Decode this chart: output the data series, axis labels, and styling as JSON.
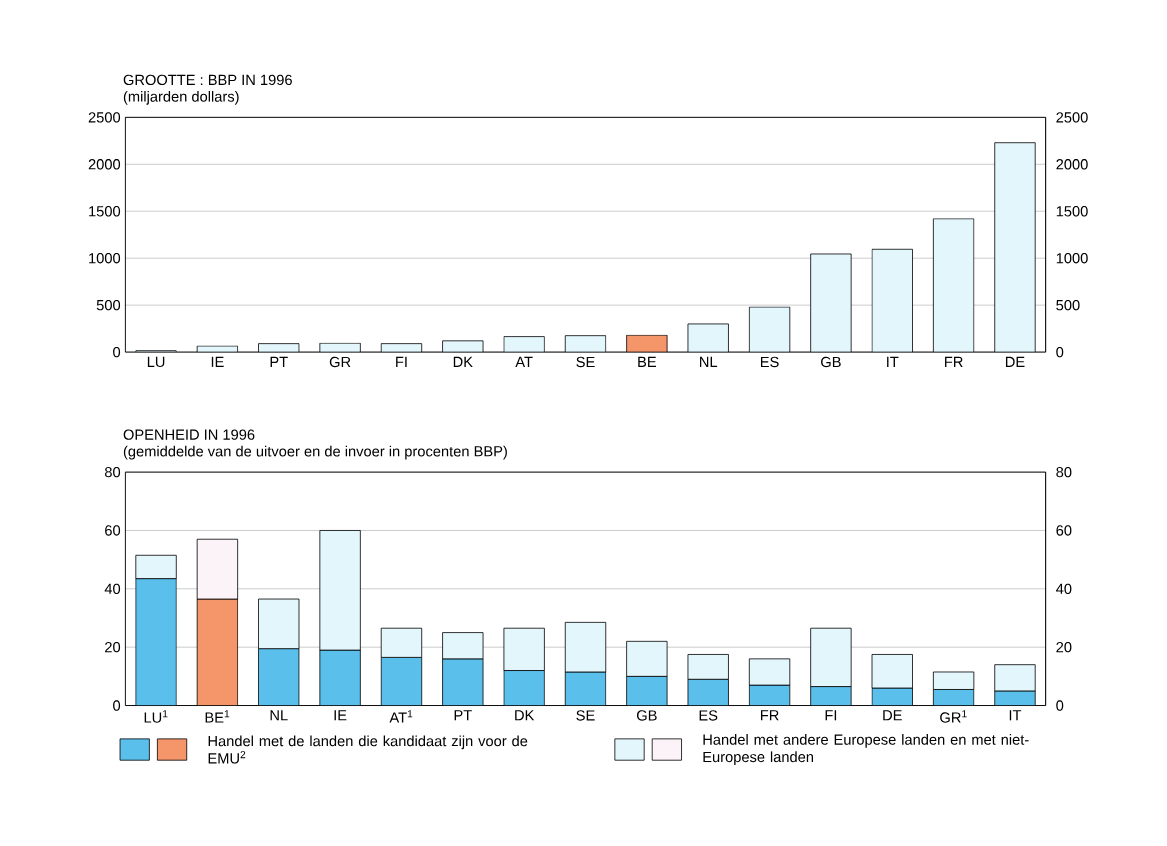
{
  "chart_data": [
    {
      "type": "bar",
      "title": "GROOTTE : BBP IN 1996",
      "subtitle": "(miljarden dollars)",
      "categories": [
        "LU",
        "IE",
        "PT",
        "GR",
        "FI",
        "DK",
        "AT",
        "SE",
        "BE",
        "NL",
        "ES",
        "GB",
        "IT",
        "FR",
        "DE"
      ],
      "values": [
        15,
        65,
        90,
        95,
        90,
        120,
        165,
        175,
        180,
        300,
        480,
        1045,
        1095,
        1420,
        2230
      ],
      "colors": [
        "#e3f6fc",
        "#e3f6fc",
        "#e3f6fc",
        "#e3f6fc",
        "#e3f6fc",
        "#e3f6fc",
        "#e3f6fc",
        "#e3f6fc",
        "#f4956a",
        "#e3f6fc",
        "#e3f6fc",
        "#e3f6fc",
        "#e3f6fc",
        "#e3f6fc",
        "#e3f6fc"
      ],
      "ylim": [
        0,
        2500
      ],
      "yticks": [
        0,
        500,
        1000,
        1500,
        2000,
        2500
      ],
      "y2lim": [
        0,
        2500
      ],
      "y2ticks": [
        0,
        500,
        1000,
        1500,
        2000,
        2500
      ],
      "grid": "y"
    },
    {
      "type": "bar",
      "stacked": true,
      "title": "OPENHEID IN 1996",
      "subtitle": "(gemiddelde van de uitvoer en de invoer in procenten BBP)",
      "categories": [
        "LU$^{1}$",
        "BE$^{1}$",
        "NL",
        "IE",
        "AT$^{1}$",
        "PT",
        "DK",
        "SE",
        "GB",
        "ES",
        "FR",
        "FI",
        "DE",
        "GR$^{1}$",
        "IT"
      ],
      "series": [
        {
          "name": "Handel met de landen die kandidaat zijn voor de EMU$^{2}$",
          "colors": [
            "#5bbfeb",
            "#f4956a",
            "#5bbfeb",
            "#5bbfeb",
            "#5bbfeb",
            "#5bbfeb",
            "#5bbfeb",
            "#5bbfeb",
            "#5bbfeb",
            "#5bbfeb",
            "#5bbfeb",
            "#5bbfeb",
            "#5bbfeb",
            "#5bbfeb",
            "#5bbfeb"
          ],
          "values": [
            43.5,
            36.5,
            19.5,
            19,
            16.5,
            16,
            12,
            11.5,
            10,
            9,
            7,
            6.5,
            6,
            5.5,
            5
          ]
        },
        {
          "name": "Handel met andere Europese landen en met niet-Europese landen",
          "colors": [
            "#e3f6fc",
            "#fbf3f7",
            "#e3f6fc",
            "#e3f6fc",
            "#e3f6fc",
            "#e3f6fc",
            "#e3f6fc",
            "#e3f6fc",
            "#e3f6fc",
            "#e3f6fc",
            "#e3f6fc",
            "#e3f6fc",
            "#e3f6fc",
            "#e3f6fc",
            "#e3f6fc"
          ],
          "values": [
            8,
            20.5,
            17,
            41,
            10,
            9,
            14.5,
            17,
            12,
            8.5,
            9,
            20,
            11.5,
            6,
            9
          ]
        }
      ],
      "ylim": [
        0,
        80
      ],
      "yticks": [
        0,
        20,
        40,
        60,
        80
      ],
      "y2lim": [
        0,
        80
      ],
      "y2ticks": [
        0,
        20,
        40,
        60,
        80
      ],
      "grid": "y",
      "legend": "bottom"
    }
  ]
}
